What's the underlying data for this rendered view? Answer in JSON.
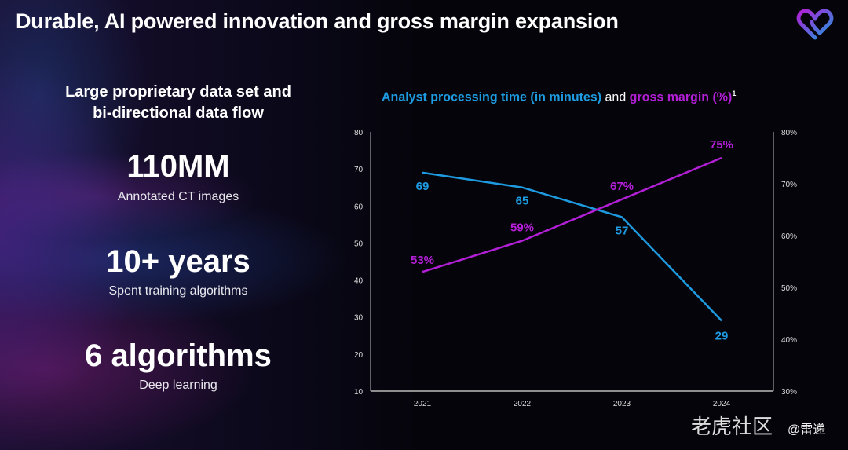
{
  "title": "Durable, AI powered innovation and gross margin expansion",
  "left": {
    "subtitle_line1": "Large proprietary data set and",
    "subtitle_line2": "bi-directional data flow",
    "stats": [
      {
        "value": "110MM",
        "label": "Annotated CT images"
      },
      {
        "value": "10+ years",
        "label": "Spent training algorithms"
      },
      {
        "value": "6 algorithms",
        "label": "Deep learning"
      }
    ]
  },
  "chart_data": {
    "type": "line",
    "title_part1": "Analyst processing time (in minutes)",
    "title_part2": "and",
    "title_part3": "gross margin (%)",
    "title_footnote": "1",
    "categories": [
      "2021",
      "2022",
      "2023",
      "2024"
    ],
    "series": [
      {
        "name": "Analyst processing time (in minutes)",
        "axis": "left",
        "color": "#1e9be0",
        "values": [
          69,
          65,
          57,
          29
        ],
        "labels": [
          "69",
          "65",
          "57",
          "29"
        ]
      },
      {
        "name": "gross margin (%)",
        "axis": "right",
        "color": "#b21fd6",
        "values": [
          53,
          59,
          67,
          75
        ],
        "labels": [
          "53%",
          "59%",
          "67%",
          "75%"
        ]
      }
    ],
    "ylim_left": [
      10,
      80
    ],
    "yticks_left": [
      "10",
      "20",
      "30",
      "40",
      "50",
      "60",
      "70",
      "80"
    ],
    "ylim_right": [
      30,
      80
    ],
    "yticks_right": [
      "30%",
      "40%",
      "50%",
      "60%",
      "70%",
      "80%"
    ],
    "grid": false
  },
  "watermark": {
    "text": "老虎社区",
    "handle": "@雷递"
  },
  "colors": {
    "blue": "#1e9be0",
    "purple": "#b21fd6"
  }
}
